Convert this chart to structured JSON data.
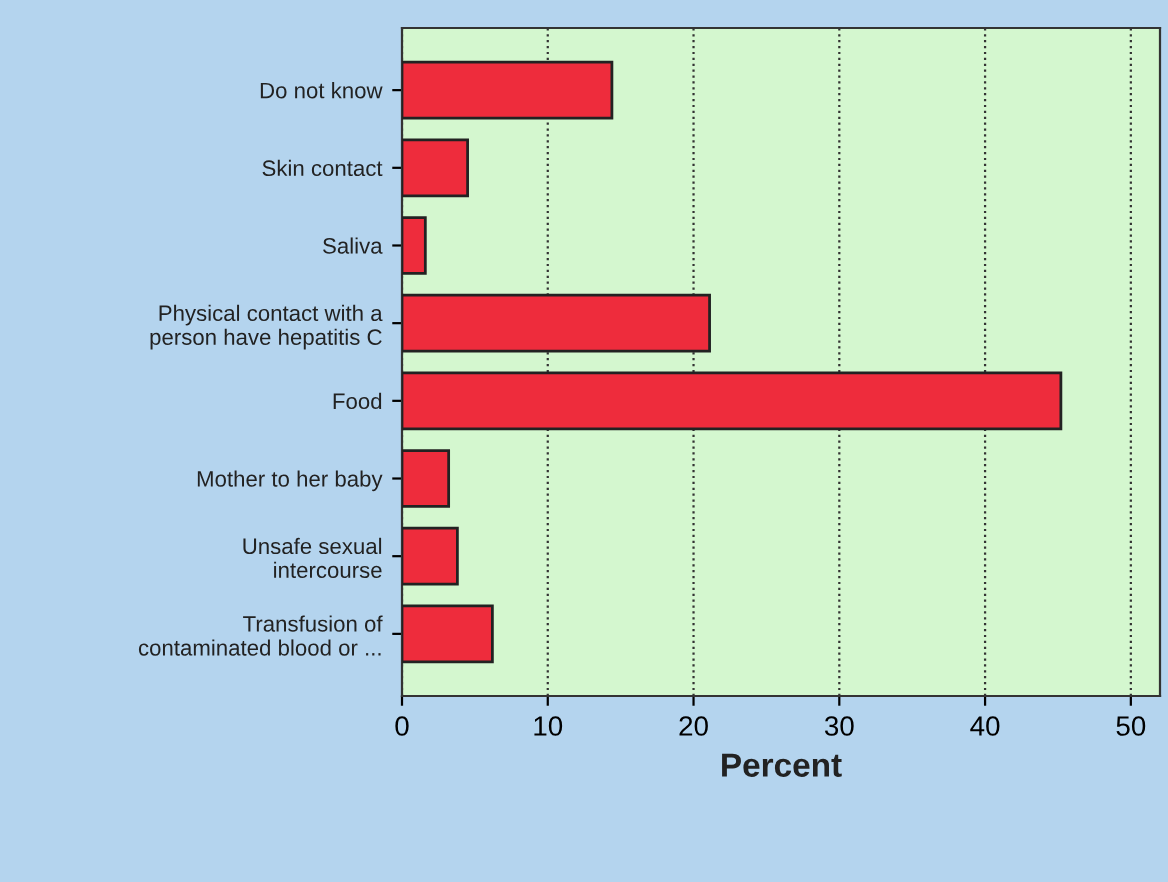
{
  "chart_data": {
    "type": "bar",
    "orientation": "horizontal",
    "xlabel": "Percent",
    "categories": [
      "Do not know",
      "Skin contact",
      "Saliva",
      "Physical contact with a\nperson have hepatitis C",
      "Food",
      "Mother to her baby",
      "Unsafe sexual\nintercourse",
      "Transfusion of\ncontaminated blood or ..."
    ],
    "values": [
      14.4,
      4.5,
      1.6,
      21.1,
      45.2,
      3.2,
      3.8,
      6.2
    ],
    "color": "#ee2c3c",
    "xlim": [
      0,
      52
    ],
    "xticks": [
      0,
      10,
      20,
      30,
      40,
      50
    ],
    "grid": "x",
    "legend": false
  }
}
